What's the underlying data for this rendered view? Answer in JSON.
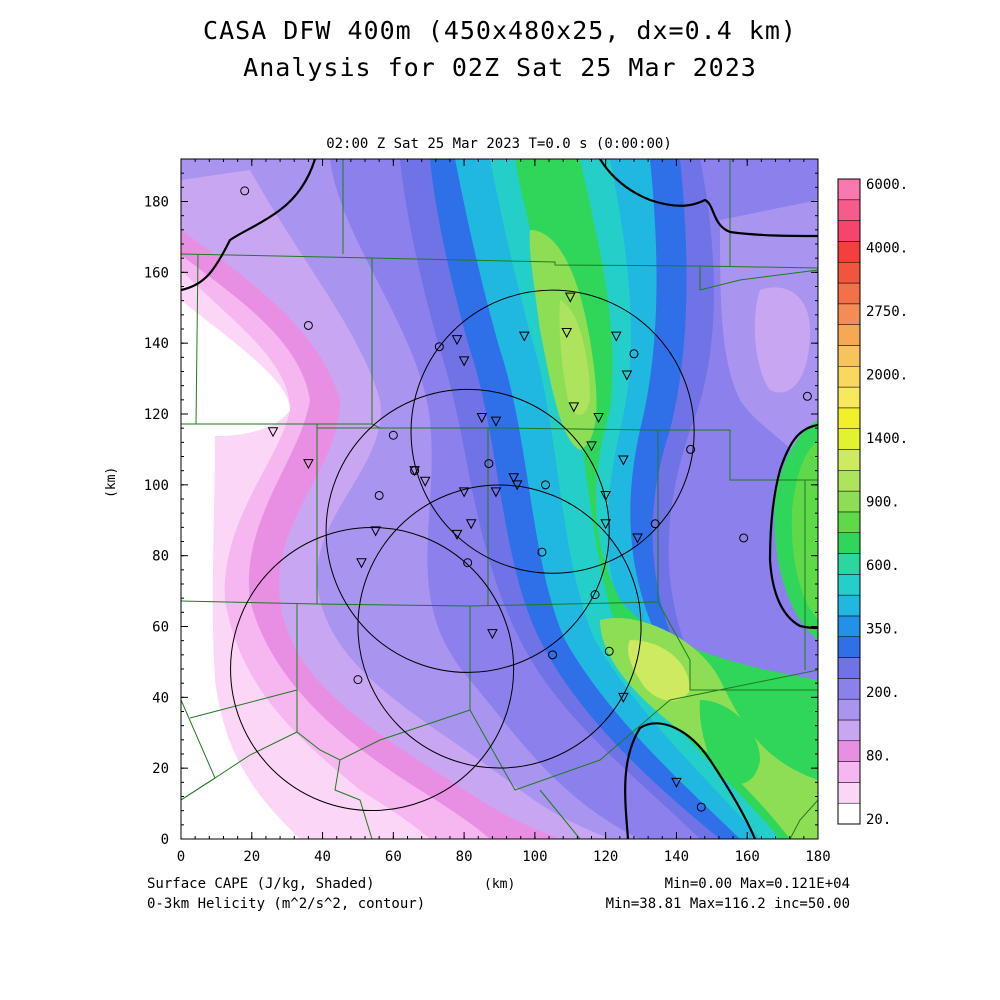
{
  "header": {
    "title_line1": "CASA DFW 400m (450x480x25, dx=0.4 km)",
    "title_line2": "Analysis for 02Z Sat 25 Mar 2023",
    "subtitle": "02:00 Z Sat 25 Mar 2023    T=0.0 s (0:00:00)"
  },
  "axes": {
    "x_label": "(km)",
    "y_label": "(km)",
    "x_ticks": [
      "0",
      "20",
      "40",
      "60",
      "80",
      "100",
      "120",
      "140",
      "160",
      "180"
    ],
    "y_ticks": [
      "0",
      "20",
      "40",
      "60",
      "80",
      "100",
      "120",
      "140",
      "160",
      "180"
    ],
    "x_range": [
      0,
      180
    ],
    "y_range": [
      0,
      192
    ]
  },
  "colorbar": {
    "labels": [
      "6000.",
      "4000.",
      "2750.",
      "2000.",
      "1400.",
      "900.",
      "600.",
      "350.",
      "200.",
      "80.",
      "20."
    ],
    "colors": [
      "#ffffff",
      "#fcd6f7",
      "#f6b6ef",
      "#e98fe3",
      "#c9a6f2",
      "#a994f0",
      "#8b80ec",
      "#6f73e6",
      "#2f6fe8",
      "#2192e8",
      "#20b7e0",
      "#25cfc9",
      "#2ad7a0",
      "#2fd65a",
      "#5fd84a",
      "#8ede55",
      "#aee35e",
      "#cdea61",
      "#e2f22e",
      "#f1f02a",
      "#f8e85c",
      "#f9d85e",
      "#f8c35b",
      "#f7a855",
      "#f48d55",
      "#f47148",
      "#f2553e",
      "#f3403d",
      "#f5456c",
      "#f75b8c",
      "#f978ae"
    ]
  },
  "footer": {
    "left_line1": "Surface CAPE (J/kg, Shaded)",
    "left_line2": "0-3km Helicity (m^2/s^2, contour)",
    "right_line1": "Min=0.00 Max=0.121E+04",
    "right_line2": "Min=38.81 Max=116.2 inc=50.00"
  },
  "map": {
    "radar_rings": [
      {
        "cx": 105,
        "cy": 115,
        "r": 40
      },
      {
        "cx": 81,
        "cy": 87,
        "r": 40
      },
      {
        "cx": 90,
        "cy": 60,
        "r": 40
      },
      {
        "cx": 54,
        "cy": 48,
        "r": 40
      }
    ],
    "triangle_stations": [
      [
        110,
        153
      ],
      [
        109,
        143
      ],
      [
        97,
        142
      ],
      [
        123,
        142
      ],
      [
        126,
        131
      ],
      [
        78,
        141
      ],
      [
        80,
        135
      ],
      [
        111,
        122
      ],
      [
        118,
        119
      ],
      [
        85,
        119
      ],
      [
        89,
        118
      ],
      [
        116,
        111
      ],
      [
        125,
        107
      ],
      [
        26,
        115
      ],
      [
        36,
        106
      ],
      [
        66,
        104
      ],
      [
        69,
        101
      ],
      [
        94,
        102
      ],
      [
        95,
        100
      ],
      [
        89,
        98
      ],
      [
        80,
        98
      ],
      [
        120,
        97
      ],
      [
        82,
        89
      ],
      [
        120,
        89
      ],
      [
        78,
        86
      ],
      [
        129,
        85
      ],
      [
        55,
        87
      ],
      [
        51,
        78
      ],
      [
        88,
        58
      ],
      [
        125,
        40
      ],
      [
        140,
        16
      ]
    ],
    "circle_stations": [
      [
        18,
        183
      ],
      [
        36,
        145
      ],
      [
        73,
        139
      ],
      [
        60,
        114
      ],
      [
        87,
        106
      ],
      [
        66,
        104
      ],
      [
        103,
        100
      ],
      [
        56,
        97
      ],
      [
        134,
        89
      ],
      [
        102,
        81
      ],
      [
        81,
        78
      ],
      [
        117,
        69
      ],
      [
        105,
        52
      ],
      [
        121,
        53
      ],
      [
        50,
        45
      ],
      [
        128,
        137
      ],
      [
        144,
        110
      ],
      [
        159,
        85
      ],
      [
        177,
        125
      ],
      [
        147,
        9
      ]
    ]
  },
  "chart_data": {
    "type": "heatmap",
    "title": "CASA DFW 400m (450x480x25, dx=0.4 km) Analysis for 02Z Sat 25 Mar 2023",
    "xlabel": "(km)",
    "ylabel": "(km)",
    "xlim": [
      0,
      180
    ],
    "ylim": [
      0,
      192
    ],
    "shaded_field": "Surface CAPE (J/kg, Shaded)",
    "shaded_min": 0.0,
    "shaded_max": 1210,
    "contour_field": "0-3km Helicity (m^2/s^2, contour)",
    "contour_min": 38.81,
    "contour_max": 116.2,
    "contour_increment": 50.0,
    "legend_position": "right",
    "colorbar_levels": [
      20,
      80,
      200,
      350,
      600,
      900,
      1400,
      2000,
      2750,
      4000,
      6000
    ]
  }
}
